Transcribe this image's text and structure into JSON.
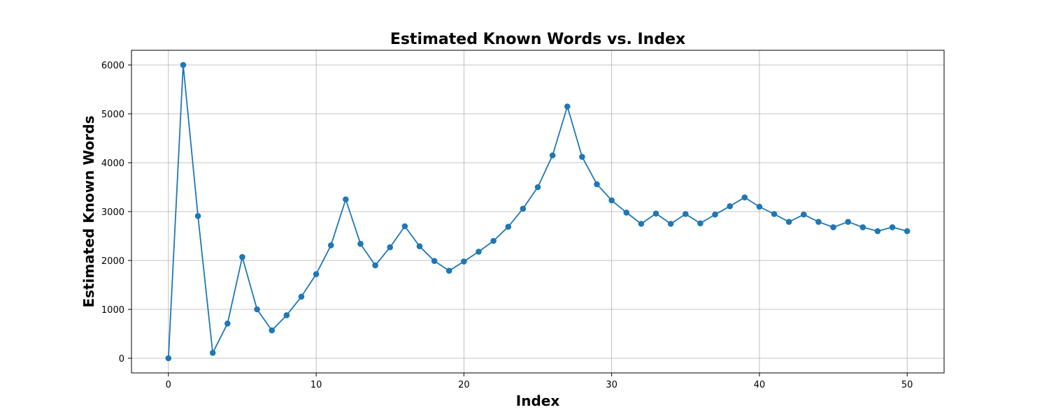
{
  "chart_data": {
    "type": "line",
    "title": "Estimated Known Words vs. Index",
    "xlabel": "Index",
    "ylabel": "Estimated Known Words",
    "xlim": [
      -2.5,
      52.5
    ],
    "ylim": [
      -300,
      6300
    ],
    "xticks": [
      0,
      10,
      20,
      30,
      40,
      50
    ],
    "yticks": [
      0,
      1000,
      2000,
      3000,
      4000,
      5000,
      6000
    ],
    "grid": true,
    "marker": "circle",
    "series": [
      {
        "color": "#1f77b4",
        "x": [
          0,
          1,
          2,
          3,
          4,
          5,
          6,
          7,
          8,
          9,
          10,
          11,
          12,
          13,
          14,
          15,
          16,
          17,
          18,
          19,
          20,
          21,
          22,
          23,
          24,
          25,
          26,
          27,
          28,
          29,
          30,
          31,
          32,
          33,
          34,
          35,
          36,
          37,
          38,
          39,
          40,
          41,
          42,
          43,
          44,
          45,
          46,
          47,
          48,
          49,
          50
        ],
        "y": [
          0,
          6000,
          2910,
          110,
          710,
          2070,
          1000,
          570,
          880,
          1260,
          1720,
          2310,
          3250,
          2340,
          1900,
          2270,
          2700,
          2290,
          1990,
          1790,
          1980,
          2180,
          2400,
          2690,
          3060,
          3500,
          4150,
          5150,
          4120,
          3560,
          3230,
          2980,
          2750,
          2960,
          2750,
          2950,
          2760,
          2940,
          3110,
          3290,
          3100,
          2950,
          2790,
          2940,
          2790,
          2680,
          2790,
          2680,
          2600,
          2680,
          2600
        ]
      }
    ]
  }
}
